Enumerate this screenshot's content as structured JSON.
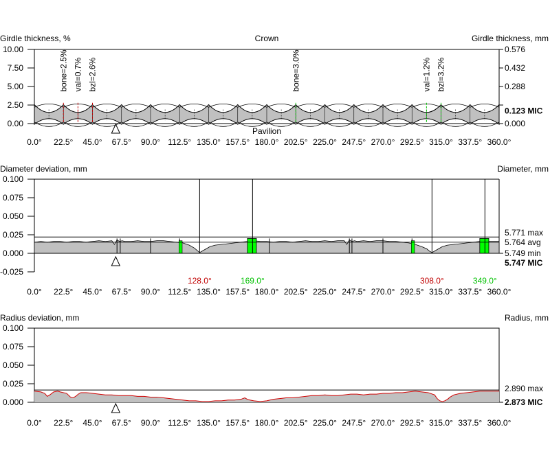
{
  "colors": {
    "profile_fill": "#c0c0c0",
    "highlight_green": "#00ff00",
    "label_red": "#c00000",
    "label_green": "#00c000",
    "red_curve": "#d00000",
    "axis": "#000000"
  },
  "x_tick_labels": [
    "0.0°",
    "22.5°",
    "45.0°",
    "67.5°",
    "90.0°",
    "112.5°",
    "135.0°",
    "157.5°",
    "180.0°",
    "202.5°",
    "225.0°",
    "247.5°",
    "270.0°",
    "292.5°",
    "315.0°",
    "337.5°",
    "360.0°"
  ],
  "marker_position_deg": 63,
  "chart_data": [
    {
      "id": "girdle",
      "type": "area",
      "title": "Crown",
      "bottom_title": "Pavilion",
      "ylabel_left": "Girdle thickness, %",
      "ylabel_right": "Girdle thickness, mm",
      "xlim": [
        0,
        360
      ],
      "ylim_left": [
        0,
        10
      ],
      "ylim_right": [
        0,
        0.576
      ],
      "left_ticks": [
        "10.00",
        "7.50",
        "5.00",
        "2.50",
        "0.00"
      ],
      "right_ticks": [
        "0.576",
        "0.432",
        "0.288",
        "",
        "0.000"
      ],
      "right_readout": "0.123 MIC",
      "scallops": 16,
      "annotations": [
        {
          "text": "bone=2.5%",
          "x": 22.5,
          "color": "red"
        },
        {
          "text": "val=0.7%",
          "x": 33.75,
          "color": "red"
        },
        {
          "text": "bzl=2.6%",
          "x": 45,
          "color": "red"
        },
        {
          "text": "bone=3.0%",
          "x": 202.5,
          "color": "green"
        },
        {
          "text": "val=1.2%",
          "x": 303.75,
          "color": "green"
        },
        {
          "text": "bzl=3.2%",
          "x": 315,
          "color": "green"
        }
      ]
    },
    {
      "id": "diameter",
      "type": "area",
      "ylabel_left": "Diameter deviation, mm",
      "ylabel_right": "Diameter, mm",
      "xlim": [
        0,
        360
      ],
      "ylim": [
        -0.025,
        0.1
      ],
      "left_ticks": [
        "0.100",
        "0.075",
        "0.050",
        "0.025",
        "0.000",
        "-0.025"
      ],
      "max_line": 0.022,
      "avg_line": 0.015,
      "right_labels": {
        "max": "5.771 max",
        "avg": "5.764 avg",
        "min": "5.749 min",
        "mic": "5.747 MIC"
      },
      "markers": [
        {
          "x": 128,
          "label": "128.0°",
          "color": "red"
        },
        {
          "x": 169,
          "label": "169.0°",
          "color": "green"
        },
        {
          "x": 308,
          "label": "308.0°",
          "color": "red"
        },
        {
          "x": 349,
          "label": "349.0°",
          "color": "green"
        }
      ],
      "green_blocks": [
        {
          "x0": 165,
          "x1": 172,
          "height": 0.02
        },
        {
          "x0": 345,
          "x1": 352,
          "height": 0.02
        }
      ],
      "profile_x": [
        0,
        5,
        10,
        15,
        20,
        25,
        30,
        35,
        40,
        45,
        50,
        55,
        60,
        62,
        64,
        66,
        68,
        70,
        75,
        80,
        85,
        90,
        95,
        100,
        105,
        110,
        115,
        120,
        124,
        126,
        128,
        130,
        133,
        136,
        140,
        145,
        150,
        155,
        160,
        165,
        170,
        175,
        180,
        185,
        190,
        195,
        200,
        205,
        210,
        215,
        220,
        225,
        230,
        235,
        240,
        242,
        244,
        246,
        248,
        250,
        255,
        260,
        265,
        270,
        275,
        280,
        285,
        290,
        295,
        300,
        304,
        306,
        308,
        310,
        313,
        316,
        320,
        325,
        330,
        335,
        340,
        345,
        350,
        355,
        360
      ],
      "profile_y": [
        0.015,
        0.016,
        0.015,
        0.016,
        0.016,
        0.015,
        0.016,
        0.016,
        0.015,
        0.016,
        0.017,
        0.016,
        0.017,
        0.012,
        0.018,
        0.016,
        0.017,
        0.016,
        0.016,
        0.017,
        0.016,
        0.016,
        0.017,
        0.017,
        0.016,
        0.015,
        0.014,
        0.011,
        0.007,
        0.004,
        0.001,
        0.003,
        0.006,
        0.009,
        0.011,
        0.012,
        0.013,
        0.014,
        0.015,
        0.016,
        0.017,
        0.016,
        0.016,
        0.015,
        0.016,
        0.016,
        0.015,
        0.016,
        0.017,
        0.016,
        0.016,
        0.017,
        0.016,
        0.017,
        0.017,
        0.012,
        0.018,
        0.016,
        0.017,
        0.016,
        0.017,
        0.016,
        0.017,
        0.017,
        0.016,
        0.016,
        0.015,
        0.014,
        0.012,
        0.009,
        0.006,
        0.003,
        0.001,
        0.003,
        0.006,
        0.009,
        0.011,
        0.012,
        0.013,
        0.014,
        0.015,
        0.016,
        0.016,
        0.016,
        0.016
      ],
      "vlines": [
        64,
        66.5,
        90,
        112.5,
        182,
        244,
        246,
        270,
        292.5
      ]
    },
    {
      "id": "radius",
      "type": "area",
      "ylabel_left": "Radius deviation, mm",
      "ylabel_right": "Radius, mm",
      "xlim": [
        0,
        360
      ],
      "ylim": [
        0,
        0.1
      ],
      "left_ticks": [
        "0.100",
        "0.075",
        "0.050",
        "0.025",
        "0.000"
      ],
      "max_line": 0.0165,
      "right_labels": {
        "max": "2.890 max",
        "mic": "2.873 MIC"
      },
      "profile_x": [
        0,
        5,
        8,
        10,
        12,
        15,
        18,
        20,
        25,
        28,
        30,
        32,
        34,
        36,
        40,
        45,
        50,
        55,
        60,
        65,
        70,
        75,
        80,
        85,
        90,
        95,
        100,
        105,
        110,
        115,
        120,
        125,
        130,
        135,
        140,
        145,
        150,
        155,
        160,
        163,
        165,
        167,
        170,
        175,
        180,
        185,
        190,
        195,
        200,
        205,
        210,
        215,
        220,
        225,
        230,
        235,
        240,
        245,
        250,
        255,
        260,
        265,
        270,
        275,
        280,
        285,
        290,
        295,
        300,
        305,
        310,
        312,
        314,
        316,
        318,
        320,
        322,
        325,
        330,
        335,
        340,
        345,
        350,
        355,
        360
      ],
      "profile_y": [
        0.015,
        0.014,
        0.012,
        0.008,
        0.01,
        0.014,
        0.015,
        0.014,
        0.012,
        0.007,
        0.006,
        0.008,
        0.011,
        0.013,
        0.013,
        0.012,
        0.011,
        0.01,
        0.01,
        0.009,
        0.009,
        0.009,
        0.008,
        0.008,
        0.007,
        0.007,
        0.006,
        0.005,
        0.004,
        0.003,
        0.002,
        0.002,
        0.001,
        0.001,
        0.002,
        0.002,
        0.003,
        0.003,
        0.004,
        0.006,
        0.004,
        0.003,
        0.002,
        0.001,
        0.002,
        0.004,
        0.005,
        0.006,
        0.006,
        0.007,
        0.008,
        0.009,
        0.009,
        0.01,
        0.009,
        0.009,
        0.01,
        0.011,
        0.011,
        0.01,
        0.011,
        0.011,
        0.012,
        0.012,
        0.013,
        0.013,
        0.014,
        0.015,
        0.014,
        0.013,
        0.01,
        0.005,
        0.002,
        0.001,
        0.002,
        0.004,
        0.007,
        0.01,
        0.012,
        0.013,
        0.014,
        0.015,
        0.015,
        0.015,
        0.015
      ]
    }
  ]
}
